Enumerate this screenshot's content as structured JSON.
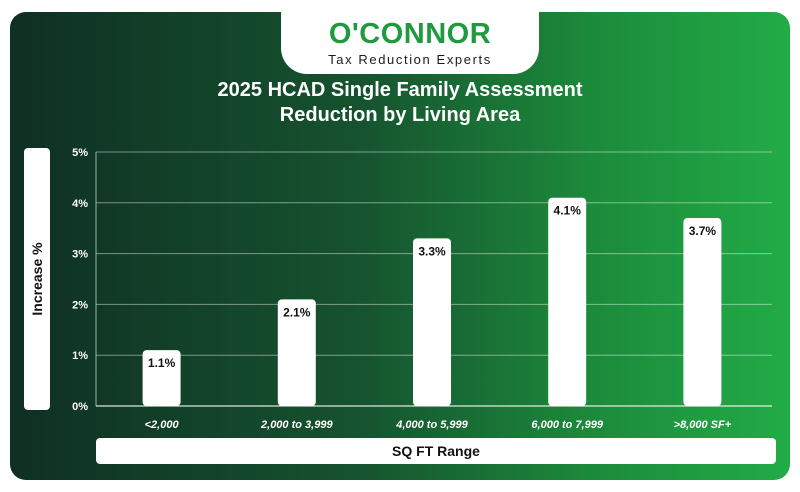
{
  "logo": {
    "wordmark": "O'CONNOR",
    "tagline": "Tax Reduction Experts"
  },
  "colors": {
    "background_dark": "#0f2f23",
    "background_light": "#22ac47",
    "brand_green": "#1f9a3f",
    "bar": "#ffffff",
    "grid": "#ffffff"
  },
  "chart_data": {
    "type": "bar",
    "title_line1": "2025 HCAD Single Family Assessment",
    "title_line2": "Reduction by Living Area",
    "xlabel": "SQ FT Range",
    "ylabel": "Increase %",
    "categories": [
      "<2,000",
      "2,000 to 3,999",
      "4,000 to 5,999",
      "6,000 to 7,999",
      ">8,000 SF+"
    ],
    "values": [
      1.1,
      2.1,
      3.3,
      4.1,
      3.7
    ],
    "data_labels": [
      "1.1%",
      "2.1%",
      "3.3%",
      "4.1%",
      "3.7%"
    ],
    "ylim": [
      0,
      5
    ],
    "yticks": [
      "0%",
      "1%",
      "2%",
      "3%",
      "4%",
      "5%"
    ],
    "grid": true,
    "legend": "none"
  }
}
